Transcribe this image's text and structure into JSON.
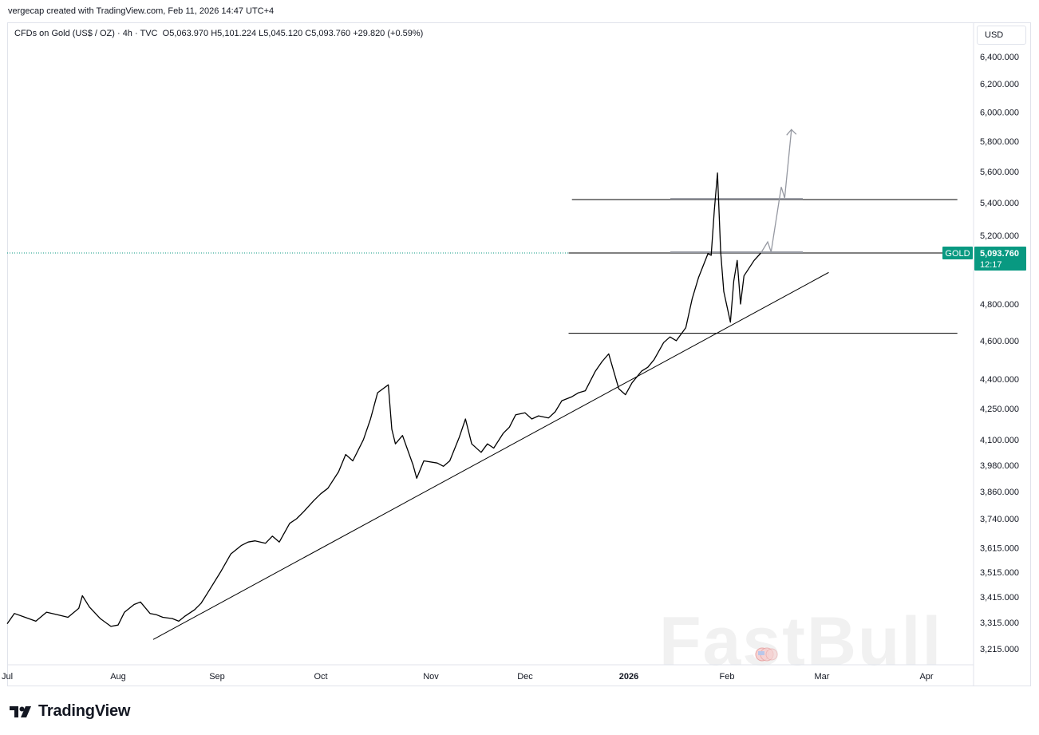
{
  "credit": "vergecap created with TradingView.com, Feb 11, 2026 14:47 UTC+4",
  "header": {
    "symbol": "CFDs on Gold (US$ / OZ) · 4h · TVC",
    "open": "O5,063.970",
    "high": "H5,101.224",
    "low": "L5,045.120",
    "close": "C5,093.760",
    "change": "+29.820 (+0.59%)"
  },
  "currency": "USD",
  "price_badge": {
    "ticker": "GOLD",
    "price": "5,093.760",
    "countdown": "12:17",
    "color": "#089981"
  },
  "footer_brand": "TradingView",
  "watermark": "FastBull",
  "chart_data": {
    "type": "line",
    "scale": "log",
    "y_ticks": [
      "6,400.000",
      "6,200.000",
      "6,000.000",
      "5,800.000",
      "5,600.000",
      "5,400.000",
      "5,200.000",
      "4,800.000",
      "4,600.000",
      "4,400.000",
      "4,250.000",
      "4,100.000",
      "3,980.000",
      "3,860.000",
      "3,740.000",
      "3,615.000",
      "3,515.000",
      "3,415.000",
      "3,315.000",
      "3,215.000"
    ],
    "x_ticks": [
      "Jul",
      "Aug",
      "Sep",
      "Oct",
      "Nov",
      "Dec",
      "2026",
      "Feb",
      "Mar",
      "Apr"
    ],
    "x_ticks_bold": [
      "2026"
    ],
    "series": [
      {
        "values": [
          [
            "Jul 1",
            3310
          ],
          [
            "Jul 3",
            3350
          ],
          [
            "Jul 6",
            3335
          ],
          [
            "Jul 9",
            3320
          ],
          [
            "Jul 12",
            3355
          ],
          [
            "Jul 15",
            3345
          ],
          [
            "Jul 18",
            3335
          ],
          [
            "Jul 21",
            3370
          ],
          [
            "Jul 22",
            3420
          ],
          [
            "Jul 24",
            3375
          ],
          [
            "Jul 27",
            3330
          ],
          [
            "Jul 30",
            3300
          ],
          [
            "Aug 1",
            3305
          ],
          [
            "Aug 3",
            3355
          ],
          [
            "Aug 6",
            3385
          ],
          [
            "Aug 8",
            3395
          ],
          [
            "Aug 11",
            3350
          ],
          [
            "Aug 13",
            3345
          ],
          [
            "Aug 15",
            3335
          ],
          [
            "Aug 18",
            3330
          ],
          [
            "Aug 20",
            3320
          ],
          [
            "Aug 22",
            3340
          ],
          [
            "Aug 25",
            3365
          ],
          [
            "Aug 27",
            3390
          ],
          [
            "Aug 29",
            3430
          ],
          [
            "Sep 2",
            3515
          ],
          [
            "Sep 5",
            3590
          ],
          [
            "Sep 8",
            3625
          ],
          [
            "Sep 10",
            3640
          ],
          [
            "Sep 12",
            3645
          ],
          [
            "Sep 15",
            3635
          ],
          [
            "Sep 17",
            3665
          ],
          [
            "Sep 19",
            3640
          ],
          [
            "Sep 22",
            3720
          ],
          [
            "Sep 24",
            3740
          ],
          [
            "Sep 26",
            3770
          ],
          [
            "Sep 29",
            3820
          ],
          [
            "Oct 1",
            3850
          ],
          [
            "Oct 3",
            3875
          ],
          [
            "Oct 6",
            3950
          ],
          [
            "Oct 8",
            4030
          ],
          [
            "Oct 10",
            4000
          ],
          [
            "Oct 13",
            4100
          ],
          [
            "Oct 15",
            4200
          ],
          [
            "Oct 17",
            4330
          ],
          [
            "Oct 20",
            4370
          ],
          [
            "Oct 21",
            4150
          ],
          [
            "Oct 22",
            4080
          ],
          [
            "Oct 24",
            4120
          ],
          [
            "Oct 27",
            3980
          ],
          [
            "Oct 28",
            3920
          ],
          [
            "Oct 30",
            4000
          ],
          [
            "Nov 3",
            3990
          ],
          [
            "Nov 5",
            3975
          ],
          [
            "Nov 7",
            4000
          ],
          [
            "Nov 10",
            4110
          ],
          [
            "Nov 12",
            4200
          ],
          [
            "Nov 14",
            4080
          ],
          [
            "Nov 17",
            4040
          ],
          [
            "Nov 19",
            4080
          ],
          [
            "Nov 21",
            4060
          ],
          [
            "Nov 24",
            4130
          ],
          [
            "Nov 26",
            4160
          ],
          [
            "Nov 28",
            4220
          ],
          [
            "Dec 1",
            4230
          ],
          [
            "Dec 3",
            4200
          ],
          [
            "Dec 5",
            4215
          ],
          [
            "Dec 8",
            4205
          ],
          [
            "Dec 10",
            4235
          ],
          [
            "Dec 12",
            4290
          ],
          [
            "Dec 15",
            4310
          ],
          [
            "Dec 17",
            4330
          ],
          [
            "Dec 19",
            4340
          ],
          [
            "Dec 22",
            4440
          ],
          [
            "Dec 24",
            4490
          ],
          [
            "Dec 26",
            4530
          ],
          [
            "Dec 29",
            4350
          ],
          [
            "Dec 31",
            4320
          ],
          [
            "Jan 2",
            4380
          ],
          [
            "Jan 5",
            4440
          ],
          [
            "Jan 7",
            4460
          ],
          [
            "Jan 9",
            4500
          ],
          [
            "Jan 12",
            4590
          ],
          [
            "Jan 14",
            4620
          ],
          [
            "Jan 16",
            4600
          ],
          [
            "Jan 19",
            4670
          ],
          [
            "Jan 21",
            4830
          ],
          [
            "Jan 23",
            4950
          ],
          [
            "Jan 26",
            5090
          ],
          [
            "Jan 27",
            5080
          ],
          [
            "Jan 28",
            5350
          ],
          [
            "Jan 29",
            5590
          ],
          [
            "Jan 30",
            5100
          ],
          [
            "Jan 31",
            4870
          ],
          [
            "Feb 2",
            4700
          ],
          [
            "Feb 3",
            4930
          ],
          [
            "Feb 4",
            5050
          ],
          [
            "Feb 5",
            4800
          ],
          [
            "Feb 6",
            4960
          ],
          [
            "Feb 9",
            5050
          ],
          [
            "Feb 11",
            5093.76
          ]
        ]
      }
    ],
    "trendlines": [
      {
        "from": [
          "Aug 12",
          3250
        ],
        "to": [
          "Mar 3",
          4980
        ]
      },
      {
        "from": [
          "Dec 15",
          5420
        ],
        "to": [
          "Apr 10",
          5420
        ]
      },
      {
        "from": [
          "Dec 14",
          5093.76
        ],
        "to": [
          "Apr 10",
          5093.76
        ]
      },
      {
        "from": [
          "Dec 14",
          4640
        ],
        "to": [
          "Apr 10",
          4640
        ]
      }
    ],
    "projection": [
      [
        "Feb 11",
        5093.76
      ],
      [
        "Feb 13",
        5160
      ],
      [
        "Feb 14",
        5100
      ],
      [
        "Feb 17",
        5500
      ],
      [
        "Feb 18",
        5430
      ],
      [
        "Feb 20",
        5880
      ]
    ],
    "last_price": 5093.76
  }
}
